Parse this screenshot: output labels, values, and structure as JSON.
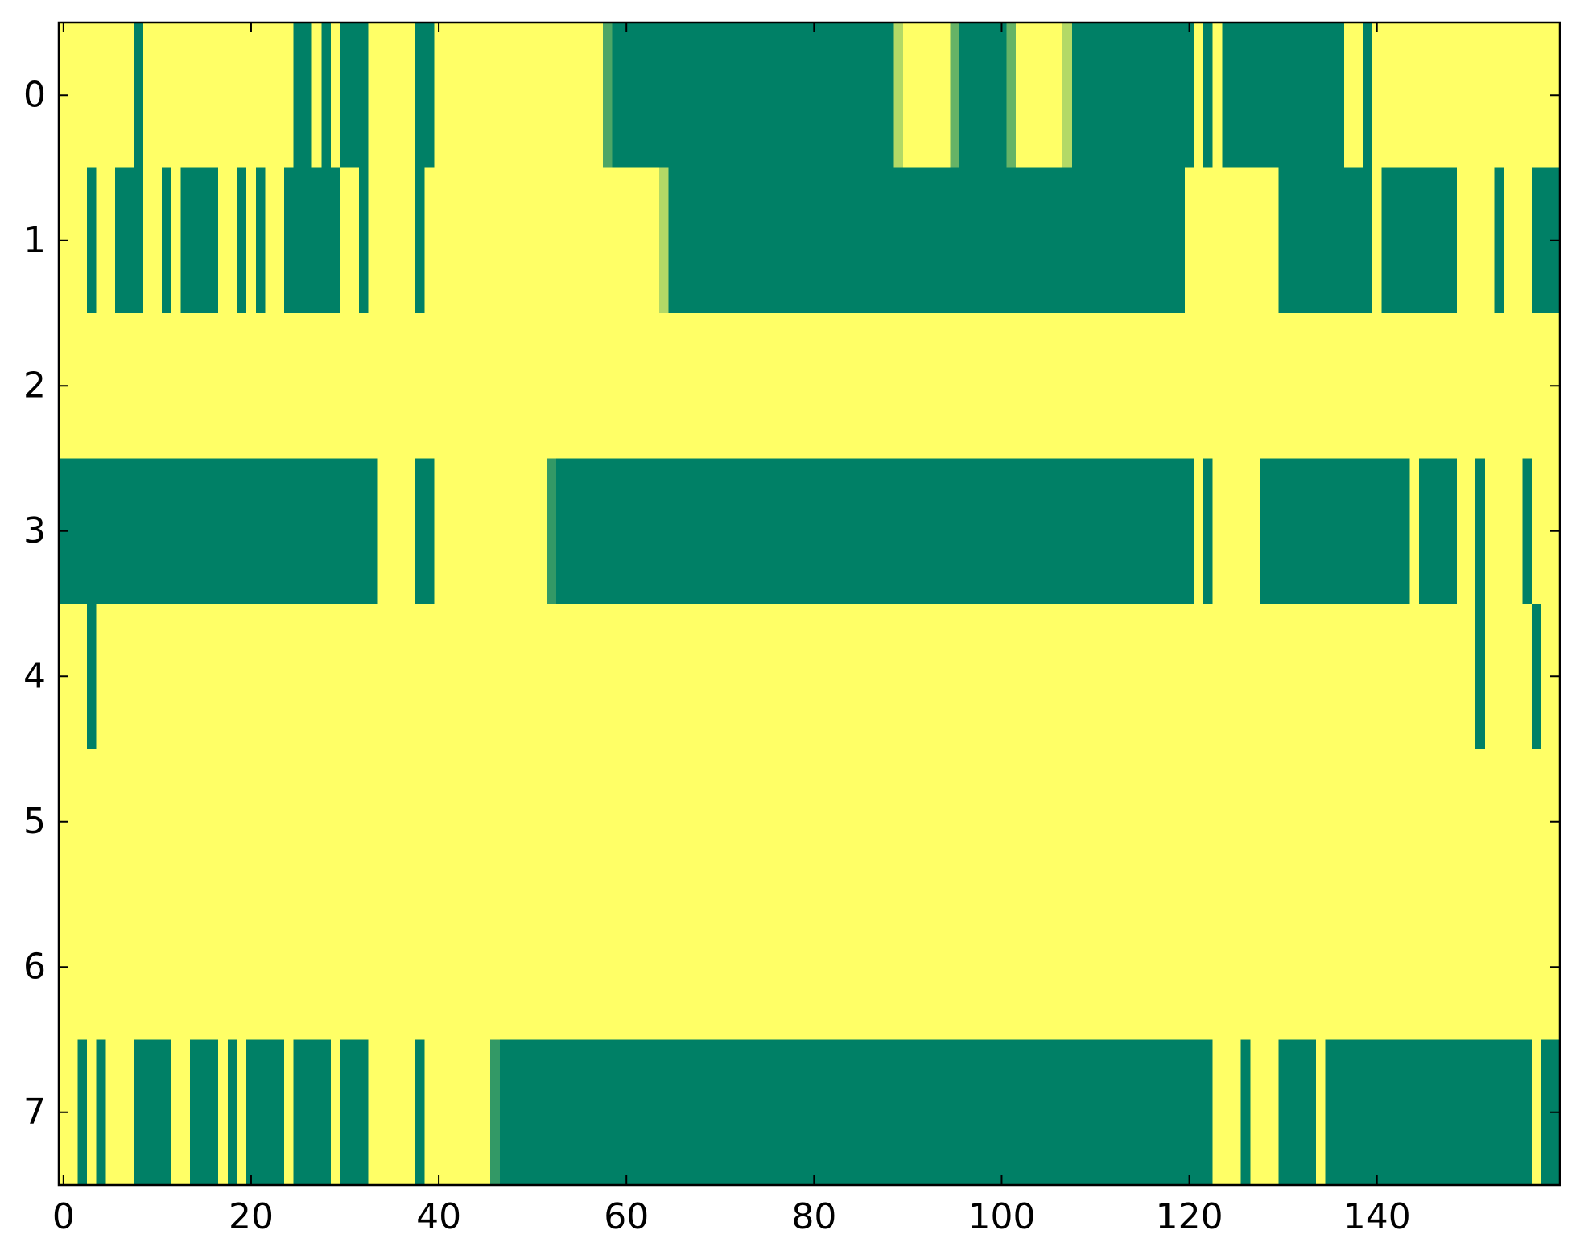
{
  "chart_data": {
    "type": "heatmap",
    "colormap": [
      "#008066",
      "#ffff66"
    ],
    "vlim": [
      0,
      1
    ],
    "xlim": [
      -0.5,
      159.5
    ],
    "xticks": [
      0,
      20,
      40,
      60,
      80,
      100,
      120,
      140
    ],
    "ylim": [
      7.5,
      -0.5
    ],
    "yticks": [
      0,
      1,
      2,
      3,
      4,
      5,
      6,
      7
    ],
    "values": [
      [
        1,
        1,
        1,
        1,
        1,
        1,
        1,
        1,
        0,
        1,
        1,
        1,
        1,
        1,
        1,
        1,
        1,
        1,
        1,
        1,
        1,
        1,
        1,
        1,
        1,
        0,
        0,
        1,
        0,
        1,
        0,
        0,
        0,
        1,
        1,
        1,
        1,
        1,
        0,
        0,
        1,
        1,
        1,
        1,
        1,
        1,
        1,
        1,
        1,
        1,
        1,
        1,
        1,
        1,
        1,
        1,
        1,
        1,
        0.3,
        0,
        0,
        0,
        0,
        0,
        0,
        0,
        0,
        0,
        0,
        0,
        0,
        0,
        0,
        0,
        0,
        0,
        0,
        0,
        0,
        0,
        0,
        0,
        0,
        0,
        0,
        0,
        0,
        0,
        0,
        0.7,
        1,
        1,
        1,
        1,
        1,
        0.4,
        0,
        0,
        0,
        0,
        0,
        0.4,
        1,
        1,
        1,
        1,
        1,
        0.7,
        0,
        0,
        0,
        0,
        0,
        0,
        0,
        0,
        0,
        0,
        0,
        0,
        0,
        1,
        0,
        1,
        0,
        0,
        0,
        0,
        0,
        0,
        0,
        0,
        0,
        0,
        0,
        0,
        0,
        1,
        1,
        0,
        1,
        1,
        1,
        1,
        1,
        1,
        1,
        1,
        1,
        1,
        1,
        1,
        1,
        1,
        1,
        1,
        1,
        1,
        1,
        1
      ],
      [
        1,
        1,
        1,
        0,
        1,
        1,
        0,
        0,
        0,
        1,
        1,
        0,
        1,
        0,
        0,
        0,
        0,
        1,
        1,
        0,
        1,
        0,
        1,
        1,
        0,
        0,
        0,
        0,
        0,
        0,
        1,
        1,
        0,
        1,
        1,
        1,
        1,
        1,
        0,
        1,
        1,
        1,
        1,
        1,
        1,
        1,
        1,
        1,
        1,
        1,
        1,
        1,
        1,
        1,
        1,
        1,
        1,
        1,
        1,
        1,
        1,
        1,
        1,
        1,
        0.7,
        0,
        0,
        0,
        0,
        0,
        0,
        0,
        0,
        0,
        0,
        0,
        0,
        0,
        0,
        0,
        0,
        0,
        0,
        0,
        0,
        0,
        0,
        0,
        0,
        0,
        0,
        0,
        0,
        0,
        0,
        0,
        0,
        0,
        0,
        0,
        0,
        0,
        0,
        0,
        0,
        0,
        0,
        0,
        0,
        0,
        0,
        0,
        0,
        0,
        0,
        0,
        0,
        0,
        0,
        0,
        1,
        1,
        1,
        1,
        1,
        1,
        1,
        1,
        1,
        1,
        0,
        0,
        0,
        0,
        0,
        0,
        0,
        0,
        0,
        0,
        1,
        0,
        0,
        0,
        0,
        0,
        0,
        0,
        0,
        1,
        1,
        1,
        1,
        0,
        1,
        1,
        1,
        0,
        0,
        0
      ],
      [
        1,
        1,
        1,
        1,
        1,
        1,
        1,
        1,
        1,
        1,
        1,
        1,
        1,
        1,
        1,
        1,
        1,
        1,
        1,
        1,
        1,
        1,
        1,
        1,
        1,
        1,
        1,
        1,
        1,
        1,
        1,
        1,
        1,
        1,
        1,
        1,
        1,
        1,
        1,
        1,
        1,
        1,
        1,
        1,
        1,
        1,
        1,
        1,
        1,
        1,
        1,
        1,
        1,
        1,
        1,
        1,
        1,
        1,
        1,
        1,
        1,
        1,
        1,
        1,
        1,
        1,
        1,
        1,
        1,
        1,
        1,
        1,
        1,
        1,
        1,
        1,
        1,
        1,
        1,
        1,
        1,
        1,
        1,
        1,
        1,
        1,
        1,
        1,
        1,
        1,
        1,
        1,
        1,
        1,
        1,
        1,
        1,
        1,
        1,
        1,
        1,
        1,
        1,
        1,
        1,
        1,
        1,
        1,
        1,
        1,
        1,
        1,
        1,
        1,
        1,
        1,
        1,
        1,
        1,
        1,
        1,
        1,
        1,
        1,
        1,
        1,
        1,
        1,
        1,
        1,
        1,
        1,
        1,
        1,
        1,
        1,
        1,
        1,
        1,
        1,
        1,
        1,
        1,
        1,
        1,
        1,
        1,
        1,
        1,
        1,
        1,
        1,
        1,
        1,
        1,
        1,
        1,
        1,
        1,
        1
      ],
      [
        0,
        0,
        0,
        0,
        0,
        0,
        0,
        0,
        0,
        0,
        0,
        0,
        0,
        0,
        0,
        0,
        0,
        0,
        0,
        0,
        0,
        0,
        0,
        0,
        0,
        0,
        0,
        0,
        0,
        0,
        0,
        0,
        0,
        0,
        1,
        1,
        1,
        1,
        0,
        0,
        1,
        1,
        1,
        1,
        1,
        1,
        1,
        1,
        1,
        1,
        1,
        1,
        0.2,
        0,
        0,
        0,
        0,
        0,
        0,
        0,
        0,
        0,
        0,
        0,
        0,
        0,
        0,
        0,
        0,
        0,
        0,
        0,
        0,
        0,
        0,
        0,
        0,
        0,
        0,
        0,
        0,
        0,
        0,
        0,
        0,
        0,
        0,
        0,
        0,
        0,
        0,
        0,
        0,
        0,
        0,
        0,
        0,
        0,
        0,
        0,
        0,
        0,
        0,
        0,
        0,
        0,
        0,
        0,
        0,
        0,
        0,
        0,
        0,
        0,
        0,
        0,
        0,
        0,
        0,
        0,
        0,
        1,
        0,
        1,
        1,
        1,
        1,
        1,
        0,
        0,
        0,
        0,
        0,
        0,
        0,
        0,
        0,
        0,
        0,
        0,
        0,
        0,
        0,
        0,
        1,
        0,
        0,
        0,
        0,
        1,
        1,
        0,
        1,
        1,
        1,
        1,
        0,
        1,
        1,
        1
      ],
      [
        1,
        1,
        1,
        0,
        1,
        1,
        1,
        1,
        1,
        1,
        1,
        1,
        1,
        1,
        1,
        1,
        1,
        1,
        1,
        1,
        1,
        1,
        1,
        1,
        1,
        1,
        1,
        1,
        1,
        1,
        1,
        1,
        1,
        1,
        1,
        1,
        1,
        1,
        1,
        1,
        1,
        1,
        1,
        1,
        1,
        1,
        1,
        1,
        1,
        1,
        1,
        1,
        1,
        1,
        1,
        1,
        1,
        1,
        1,
        1,
        1,
        1,
        1,
        1,
        1,
        1,
        1,
        1,
        1,
        1,
        1,
        1,
        1,
        1,
        1,
        1,
        1,
        1,
        1,
        1,
        1,
        1,
        1,
        1,
        1,
        1,
        1,
        1,
        1,
        1,
        1,
        1,
        1,
        1,
        1,
        1,
        1,
        1,
        1,
        1,
        1,
        1,
        1,
        1,
        1,
        1,
        1,
        1,
        1,
        1,
        1,
        1,
        1,
        1,
        1,
        1,
        1,
        1,
        1,
        1,
        1,
        1,
        1,
        1,
        1,
        1,
        1,
        1,
        1,
        1,
        1,
        1,
        1,
        1,
        1,
        1,
        1,
        1,
        1,
        1,
        1,
        1,
        1,
        1,
        1,
        1,
        1,
        1,
        1,
        1,
        1,
        0,
        1,
        1,
        1,
        1,
        1,
        0,
        1,
        1
      ],
      [
        1,
        1,
        1,
        1,
        1,
        1,
        1,
        1,
        1,
        1,
        1,
        1,
        1,
        1,
        1,
        1,
        1,
        1,
        1,
        1,
        1,
        1,
        1,
        1,
        1,
        1,
        1,
        1,
        1,
        1,
        1,
        1,
        1,
        1,
        1,
        1,
        1,
        1,
        1,
        1,
        1,
        1,
        1,
        1,
        1,
        1,
        1,
        1,
        1,
        1,
        1,
        1,
        1,
        1,
        1,
        1,
        1,
        1,
        1,
        1,
        1,
        1,
        1,
        1,
        1,
        1,
        1,
        1,
        1,
        1,
        1,
        1,
        1,
        1,
        1,
        1,
        1,
        1,
        1,
        1,
        1,
        1,
        1,
        1,
        1,
        1,
        1,
        1,
        1,
        1,
        1,
        1,
        1,
        1,
        1,
        1,
        1,
        1,
        1,
        1,
        1,
        1,
        1,
        1,
        1,
        1,
        1,
        1,
        1,
        1,
        1,
        1,
        1,
        1,
        1,
        1,
        1,
        1,
        1,
        1,
        1,
        1,
        1,
        1,
        1,
        1,
        1,
        1,
        1,
        1,
        1,
        1,
        1,
        1,
        1,
        1,
        1,
        1,
        1,
        1,
        1,
        1,
        1,
        1,
        1,
        1,
        1,
        1,
        1,
        1,
        1,
        1,
        1,
        1,
        1,
        1,
        1,
        1,
        1,
        1
      ],
      [
        1,
        1,
        1,
        1,
        1,
        1,
        1,
        1,
        1,
        1,
        1,
        1,
        1,
        1,
        1,
        1,
        1,
        1,
        1,
        1,
        1,
        1,
        1,
        1,
        1,
        1,
        1,
        1,
        1,
        1,
        1,
        1,
        1,
        1,
        1,
        1,
        1,
        1,
        1,
        1,
        1,
        1,
        1,
        1,
        1,
        1,
        1,
        1,
        1,
        1,
        1,
        1,
        1,
        1,
        1,
        1,
        1,
        1,
        1,
        1,
        1,
        1,
        1,
        1,
        1,
        1,
        1,
        1,
        1,
        1,
        1,
        1,
        1,
        1,
        1,
        1,
        1,
        1,
        1,
        1,
        1,
        1,
        1,
        1,
        1,
        1,
        1,
        1,
        1,
        1,
        1,
        1,
        1,
        1,
        1,
        1,
        1,
        1,
        1,
        1,
        1,
        1,
        1,
        1,
        1,
        1,
        1,
        1,
        1,
        1,
        1,
        1,
        1,
        1,
        1,
        1,
        1,
        1,
        1,
        1,
        1,
        1,
        1,
        1,
        1,
        1,
        1,
        1,
        1,
        1,
        1,
        1,
        1,
        1,
        1,
        1,
        1,
        1,
        1,
        1,
        1,
        1,
        1,
        1,
        1,
        1,
        1,
        1,
        1,
        1,
        1,
        1,
        1,
        1,
        1,
        1,
        1,
        1,
        1,
        1
      ],
      [
        1,
        1,
        0,
        1,
        0,
        1,
        1,
        1,
        0,
        0,
        0,
        0,
        1,
        1,
        0,
        0,
        0,
        1,
        0,
        1,
        0,
        0,
        0,
        0,
        1,
        0,
        0,
        0,
        0,
        1,
        0,
        0,
        0,
        1,
        1,
        1,
        1,
        1,
        0,
        1,
        1,
        1,
        1,
        1,
        1,
        1,
        0.2,
        0,
        0,
        0,
        0,
        0,
        0,
        0,
        0,
        0,
        0,
        0,
        0,
        0,
        0,
        0,
        0,
        0,
        0,
        0,
        0,
        0,
        0,
        0,
        0,
        0,
        0,
        0,
        0,
        0,
        0,
        0,
        0,
        0,
        0,
        0,
        0,
        0,
        0,
        0,
        0,
        0,
        0,
        0,
        0,
        0,
        0,
        0,
        0,
        0,
        0,
        0,
        0,
        0,
        0,
        0,
        0,
        0,
        0,
        0,
        0,
        0,
        0,
        0,
        0,
        0,
        0,
        0,
        0,
        0,
        0,
        0,
        0,
        0,
        0,
        0,
        0,
        1,
        1,
        1,
        0,
        1,
        1,
        1,
        0,
        0,
        0,
        0,
        1,
        0,
        0,
        0,
        0,
        0,
        0,
        0,
        0,
        0,
        0,
        0,
        0,
        0,
        0,
        0,
        0,
        0,
        0,
        0,
        0,
        0,
        0,
        1,
        0,
        0
      ]
    ]
  }
}
